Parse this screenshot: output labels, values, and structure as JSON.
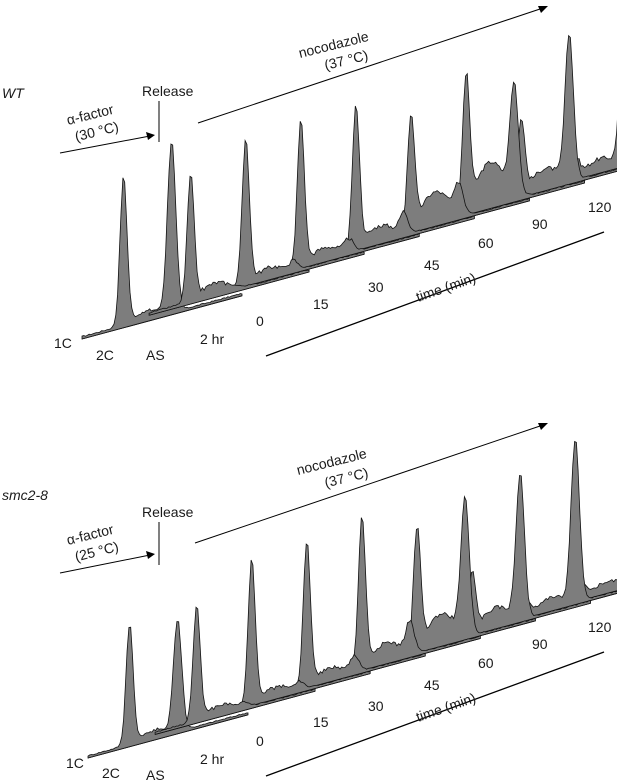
{
  "chart_data": [
    {
      "type": "area",
      "strain_label": "WT",
      "arrest": {
        "label": "α-factor",
        "temp": "(30 °C)"
      },
      "release_label": "Release",
      "drug": {
        "label": "nocodazole",
        "temp": "(37 °C)"
      },
      "dna_content_labels": [
        "1C",
        "2C"
      ],
      "axis_label": "time (min)",
      "samples": [
        {
          "label": "AS",
          "peak1": 0.62,
          "peak2": 0.0,
          "shoulder": 0.06
        },
        {
          "label": "2 hr",
          "peak1": 0.72,
          "peak2": 0.04,
          "shoulder": 0.05
        },
        {
          "label": "0",
          "peak1": 0.72,
          "peak2": 0.06,
          "shoulder": 0.06
        },
        {
          "label": "15",
          "peak1": 0.7,
          "peak2": 0.1,
          "shoulder": 0.08
        },
        {
          "label": "30",
          "peak1": 0.55,
          "peak2": 0.14,
          "shoulder": 0.16
        },
        {
          "label": "45",
          "peak1": 0.65,
          "peak2": 0.54,
          "shoulder": 0.22
        },
        {
          "label": "60",
          "peak1": 0.36,
          "peak2": 0.72,
          "shoulder": 0.1
        },
        {
          "label": "90",
          "peak1": 0.08,
          "peak2": 0.82,
          "shoulder": 0.06
        },
        {
          "label": "120",
          "peak1": 0.08,
          "peak2": 0.9,
          "shoulder": 0.05
        }
      ],
      "first_pair": {
        "peak1": 0.82,
        "peak2": 0.85
      }
    },
    {
      "type": "area",
      "strain_label": "smc2-8",
      "arrest": {
        "label": "α-factor",
        "temp": "(25 °C)"
      },
      "release_label": "Release",
      "drug": {
        "label": "nocodazole",
        "temp": "(37 °C)"
      },
      "dna_content_labels": [
        "1C",
        "2C"
      ],
      "axis_label": "time (min)",
      "samples": [
        {
          "label": "AS",
          "peak1": 0.6,
          "peak2": 0.02,
          "shoulder": 0.05
        },
        {
          "label": "2 hr",
          "peak1": 0.75,
          "peak2": 0.04,
          "shoulder": 0.05
        },
        {
          "label": "0",
          "peak1": 0.75,
          "peak2": 0.08,
          "shoulder": 0.06
        },
        {
          "label": "15",
          "peak1": 0.78,
          "peak2": 0.16,
          "shoulder": 0.1
        },
        {
          "label": "30",
          "peak1": 0.62,
          "peak2": 0.7,
          "shoulder": 0.16
        },
        {
          "label": "45",
          "peak1": 0.3,
          "peak2": 0.75,
          "shoulder": 0.1
        },
        {
          "label": "60",
          "peak1": 0.06,
          "peak2": 0.85,
          "shoulder": 0.06
        },
        {
          "label": "90",
          "peak1": 0.06,
          "peak2": 0.82,
          "shoulder": 0.05
        },
        {
          "label": "120",
          "peak1": 0.06,
          "peak2": 0.92,
          "shoulder": 0.05
        }
      ],
      "first_pair": {
        "peak1": 0.7,
        "peak2": 0.58
      }
    }
  ]
}
